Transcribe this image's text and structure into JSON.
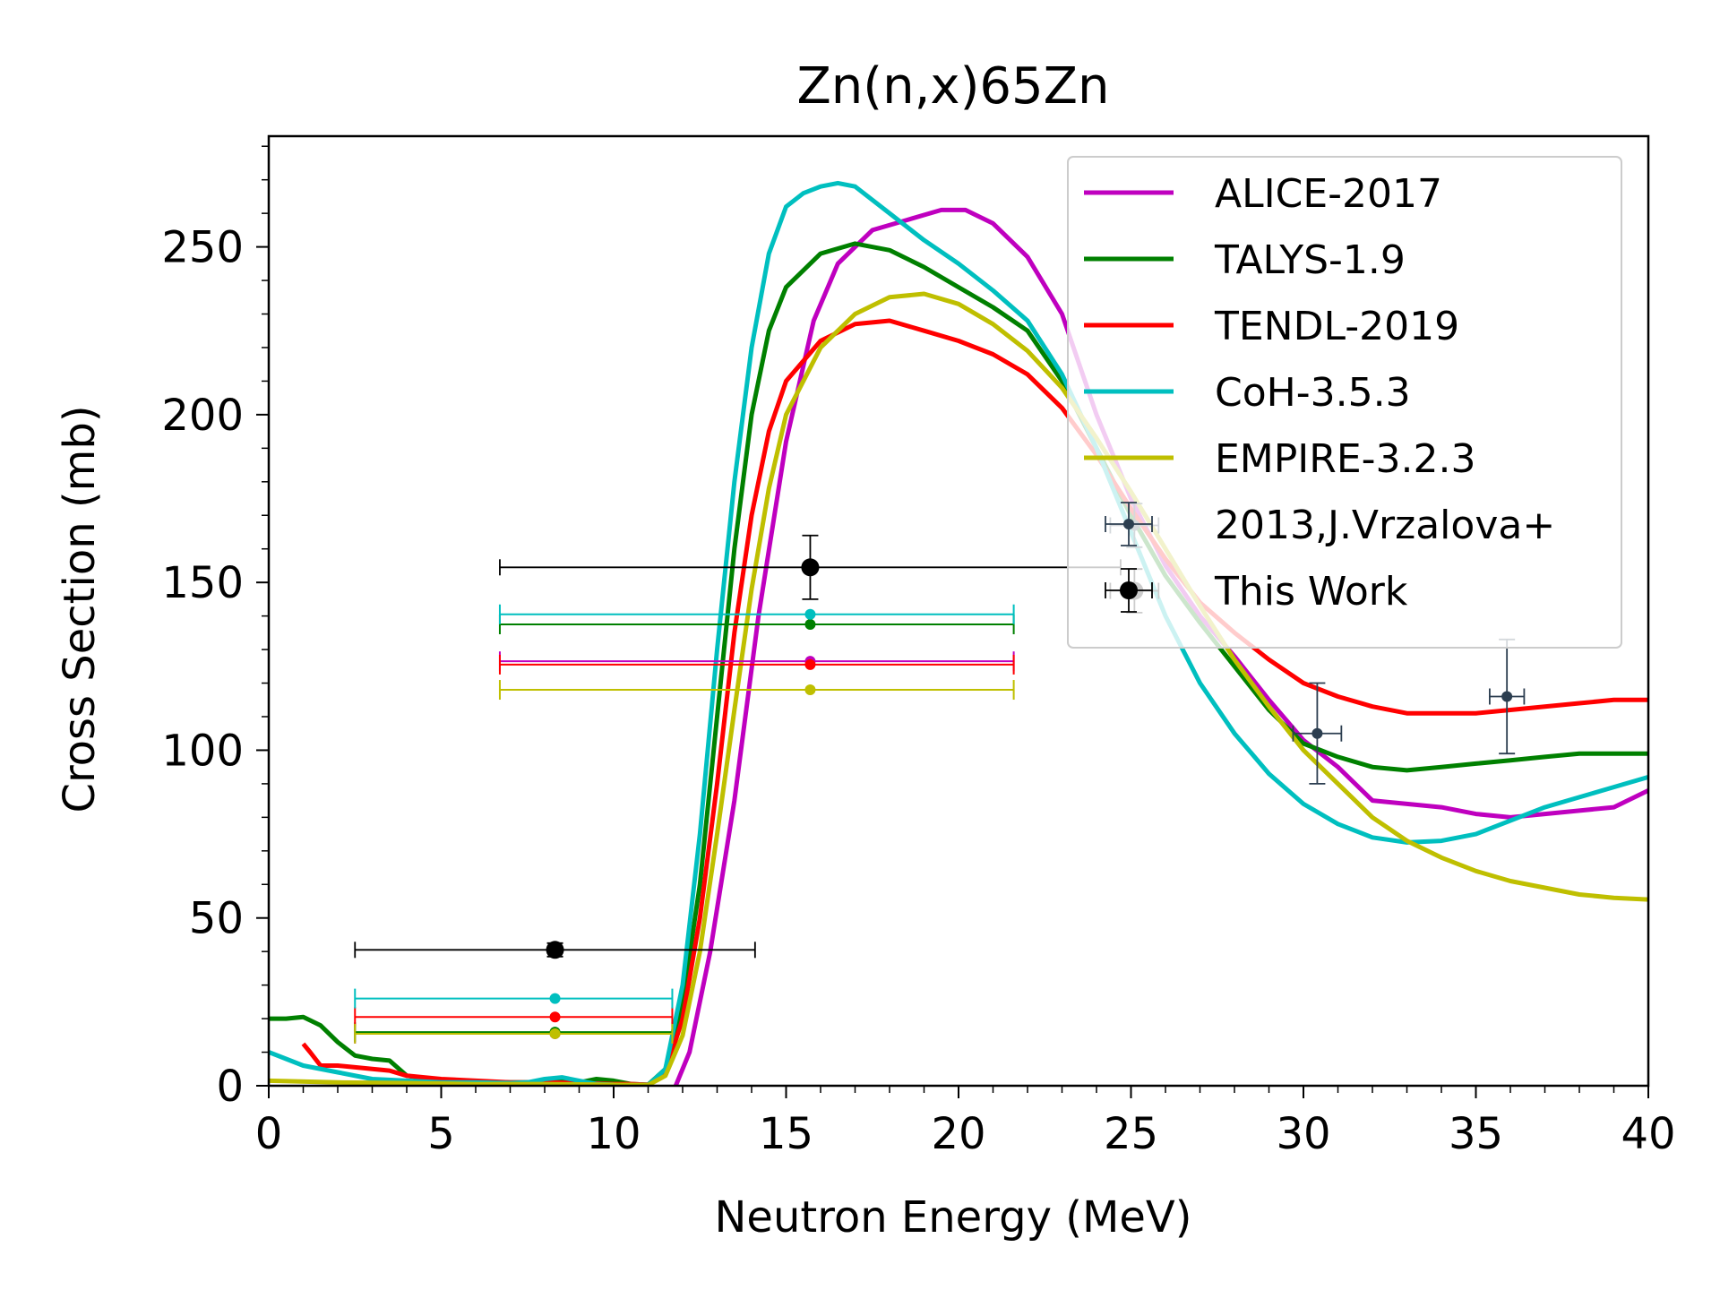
{
  "chart_data": {
    "type": "line",
    "title": "Zn(n,x)65Zn",
    "xlabel": "Neutron Energy (MeV)",
    "ylabel": "Cross Section (mb)",
    "xlim": [
      0,
      40
    ],
    "ylim": [
      0,
      283
    ],
    "xticks": [
      "0",
      "5",
      "10",
      "15",
      "20",
      "25",
      "30",
      "35",
      "40"
    ],
    "yticks": [
      "0",
      "50",
      "100",
      "150",
      "200",
      "250"
    ],
    "grid": false,
    "legend_position": "top-right",
    "series": [
      {
        "name": "ALICE-2017",
        "color": "#bf00bf",
        "points": [
          [
            11.8,
            0
          ],
          [
            12.2,
            10
          ],
          [
            12.8,
            40
          ],
          [
            13.5,
            85
          ],
          [
            14.2,
            140
          ],
          [
            15,
            192
          ],
          [
            15.8,
            228
          ],
          [
            16.5,
            245
          ],
          [
            17.5,
            255
          ],
          [
            18.5,
            258
          ],
          [
            19.5,
            261
          ],
          [
            20.2,
            261
          ],
          [
            21,
            257
          ],
          [
            22,
            247
          ],
          [
            23,
            230
          ],
          [
            24,
            200
          ],
          [
            25,
            175
          ],
          [
            26,
            155
          ],
          [
            27,
            140
          ],
          [
            28,
            128
          ],
          [
            29,
            115
          ],
          [
            30,
            103
          ],
          [
            31,
            95
          ],
          [
            32,
            85
          ],
          [
            33,
            84
          ],
          [
            34,
            83
          ],
          [
            35,
            81
          ],
          [
            36,
            80
          ],
          [
            37,
            81
          ],
          [
            38,
            82
          ],
          [
            39,
            83
          ],
          [
            40,
            88
          ]
        ],
        "fold_points": [
          [
            8.3,
            15.5
          ],
          [
            15.7,
            126.5
          ]
        ]
      },
      {
        "name": "TALYS-1.9",
        "color": "#008000",
        "points": [
          [
            0,
            20
          ],
          [
            0.5,
            20
          ],
          [
            1,
            20.5
          ],
          [
            1.5,
            18
          ],
          [
            2,
            13
          ],
          [
            2.5,
            9
          ],
          [
            3,
            8
          ],
          [
            3.5,
            7.5
          ],
          [
            4,
            3
          ],
          [
            5,
            1.5
          ],
          [
            6,
            1.2
          ],
          [
            7,
            1
          ],
          [
            8,
            1
          ],
          [
            8.5,
            1.5
          ],
          [
            9,
            1
          ],
          [
            9.5,
            2
          ],
          [
            10,
            1.5
          ],
          [
            10.5,
            0.5
          ],
          [
            11,
            0.3
          ],
          [
            11.5,
            5
          ],
          [
            12,
            25
          ],
          [
            12.5,
            60
          ],
          [
            13,
            110
          ],
          [
            13.5,
            160
          ],
          [
            14,
            200
          ],
          [
            14.5,
            225
          ],
          [
            15,
            238
          ],
          [
            16,
            248
          ],
          [
            17,
            251
          ],
          [
            18,
            249
          ],
          [
            19,
            244
          ],
          [
            20,
            238
          ],
          [
            21,
            232
          ],
          [
            22,
            225
          ],
          [
            23,
            210
          ],
          [
            24,
            190
          ],
          [
            25,
            170
          ],
          [
            26,
            152
          ],
          [
            27,
            138
          ],
          [
            28,
            125
          ],
          [
            29,
            112
          ],
          [
            30,
            102
          ],
          [
            31,
            98
          ],
          [
            32,
            95
          ],
          [
            33,
            94
          ],
          [
            34,
            95
          ],
          [
            35,
            96
          ],
          [
            36,
            97
          ],
          [
            37,
            98
          ],
          [
            38,
            99
          ],
          [
            39,
            99
          ],
          [
            40,
            99
          ]
        ],
        "fold_points": [
          [
            8.3,
            16
          ],
          [
            15.7,
            137.5
          ]
        ]
      },
      {
        "name": "TENDL-2019",
        "color": "#ff0000",
        "points": [
          [
            1,
            12.5
          ],
          [
            1.2,
            10
          ],
          [
            1.5,
            6
          ],
          [
            2,
            6
          ],
          [
            2.5,
            5.5
          ],
          [
            3,
            5
          ],
          [
            3.5,
            4.5
          ],
          [
            4,
            3
          ],
          [
            5,
            2
          ],
          [
            6,
            1.5
          ],
          [
            7,
            1
          ],
          [
            8,
            1
          ],
          [
            9,
            0.8
          ],
          [
            10,
            0.5
          ],
          [
            10.5,
            0.5
          ],
          [
            11,
            0.3
          ],
          [
            11.5,
            4
          ],
          [
            12,
            20
          ],
          [
            12.5,
            50
          ],
          [
            13,
            90
          ],
          [
            13.5,
            135
          ],
          [
            14,
            170
          ],
          [
            14.5,
            195
          ],
          [
            15,
            210
          ],
          [
            16,
            222
          ],
          [
            17,
            227
          ],
          [
            18,
            228
          ],
          [
            19,
            225
          ],
          [
            20,
            222
          ],
          [
            21,
            218
          ],
          [
            22,
            212
          ],
          [
            23,
            202
          ],
          [
            24,
            188
          ],
          [
            25,
            172
          ],
          [
            26,
            157
          ],
          [
            27,
            144
          ],
          [
            28,
            135
          ],
          [
            29,
            127
          ],
          [
            30,
            120
          ],
          [
            31,
            116
          ],
          [
            32,
            113
          ],
          [
            33,
            111
          ],
          [
            34,
            111
          ],
          [
            35,
            111
          ],
          [
            36,
            112
          ],
          [
            37,
            113
          ],
          [
            38,
            114
          ],
          [
            39,
            115
          ],
          [
            40,
            115
          ]
        ],
        "fold_points": [
          [
            8.3,
            20.5
          ],
          [
            15.7,
            125.5
          ]
        ]
      },
      {
        "name": "CoH-3.5.3",
        "color": "#00bfbf",
        "points": [
          [
            0,
            10
          ],
          [
            0.5,
            8
          ],
          [
            1,
            6
          ],
          [
            2,
            4
          ],
          [
            3,
            2
          ],
          [
            4,
            1.5
          ],
          [
            5,
            1
          ],
          [
            6,
            1
          ],
          [
            7,
            0.8
          ],
          [
            7.5,
            1
          ],
          [
            8,
            2
          ],
          [
            8.5,
            2.5
          ],
          [
            9,
            1.5
          ],
          [
            9.5,
            0.5
          ],
          [
            10,
            0.3
          ],
          [
            11,
            0.2
          ],
          [
            11.5,
            5
          ],
          [
            12,
            30
          ],
          [
            12.5,
            75
          ],
          [
            13,
            130
          ],
          [
            13.5,
            180
          ],
          [
            14,
            220
          ],
          [
            14.5,
            248
          ],
          [
            15,
            262
          ],
          [
            15.5,
            266
          ],
          [
            16,
            268
          ],
          [
            16.5,
            269
          ],
          [
            17,
            268
          ],
          [
            18,
            260
          ],
          [
            19,
            252
          ],
          [
            20,
            245
          ],
          [
            21,
            237
          ],
          [
            22,
            228
          ],
          [
            23,
            212
          ],
          [
            24,
            190
          ],
          [
            25,
            165
          ],
          [
            26,
            140
          ],
          [
            27,
            120
          ],
          [
            28,
            105
          ],
          [
            29,
            93
          ],
          [
            30,
            84
          ],
          [
            31,
            78
          ],
          [
            32,
            74
          ],
          [
            33,
            72.5
          ],
          [
            34,
            73
          ],
          [
            35,
            75
          ],
          [
            36,
            79
          ],
          [
            37,
            83
          ],
          [
            38,
            86
          ],
          [
            39,
            89
          ],
          [
            40,
            92
          ]
        ],
        "fold_points": [
          [
            8.3,
            26
          ],
          [
            15.7,
            140.5
          ]
        ]
      },
      {
        "name": "EMPIRE-3.2.3",
        "color": "#bfbf00",
        "points": [
          [
            0,
            1.5
          ],
          [
            2,
            1
          ],
          [
            4,
            0.8
          ],
          [
            6,
            0.5
          ],
          [
            8,
            0.5
          ],
          [
            10,
            0.3
          ],
          [
            11,
            0.2
          ],
          [
            11.5,
            3
          ],
          [
            12,
            15
          ],
          [
            12.5,
            40
          ],
          [
            13,
            75
          ],
          [
            13.5,
            112
          ],
          [
            14,
            148
          ],
          [
            14.5,
            178
          ],
          [
            15,
            200
          ],
          [
            16,
            220
          ],
          [
            17,
            230
          ],
          [
            18,
            235
          ],
          [
            19,
            236
          ],
          [
            20,
            233
          ],
          [
            21,
            227
          ],
          [
            22,
            219
          ],
          [
            23,
            208
          ],
          [
            24,
            193
          ],
          [
            25,
            177
          ],
          [
            26,
            160
          ],
          [
            27,
            143
          ],
          [
            28,
            127
          ],
          [
            29,
            113
          ],
          [
            30,
            100
          ],
          [
            31,
            90
          ],
          [
            32,
            80
          ],
          [
            33,
            73
          ],
          [
            34,
            68
          ],
          [
            35,
            64
          ],
          [
            36,
            61
          ],
          [
            37,
            59
          ],
          [
            38,
            57
          ],
          [
            39,
            56
          ],
          [
            40,
            55.5
          ]
        ],
        "fold_points": [
          [
            8.3,
            15.5
          ],
          [
            15.7,
            118
          ]
        ]
      }
    ],
    "experimental": [
      {
        "name": "2013,J.Vrzalova+",
        "color": "#2c3e50",
        "points": [
          {
            "x": 25.1,
            "y": 167,
            "xerr": 0.7,
            "yerr": 6.5
          },
          {
            "x": 30.4,
            "y": 105,
            "xerr": 0.7,
            "yerr": 15
          },
          {
            "x": 35.9,
            "y": 116,
            "xerr": 0.5,
            "yerr": 17
          }
        ]
      },
      {
        "name": "This Work",
        "color": "#000000",
        "points": [
          {
            "x": 8.3,
            "y": 40.5,
            "xerr": 5.8,
            "yerr": 2
          },
          {
            "x": 15.7,
            "y": 154.5,
            "xerr": 9.0,
            "yerr": 9.5
          },
          {
            "x": 25.1,
            "y": 147.5,
            "xerr": 0.7,
            "yerr": 6.5
          }
        ]
      }
    ],
    "fold_ranges": [
      [
        2.5,
        11.7
      ],
      [
        6.7,
        21.6
      ]
    ]
  }
}
